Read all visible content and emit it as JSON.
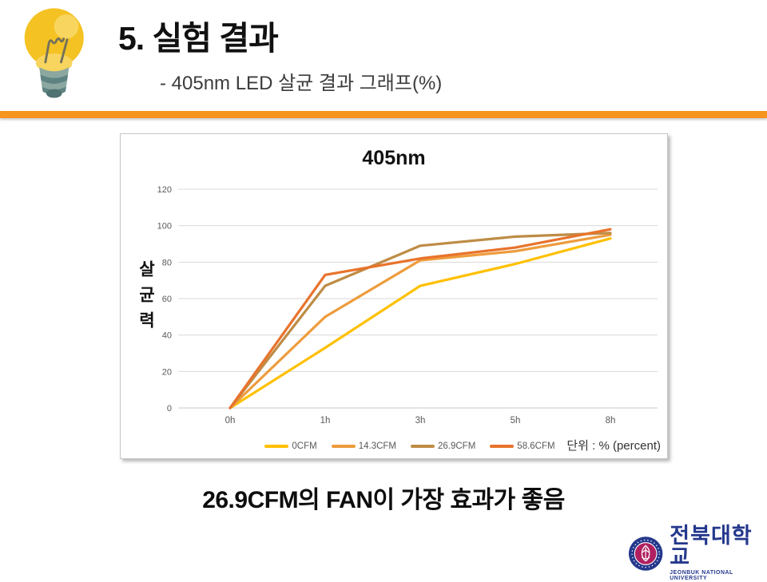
{
  "colors": {
    "accent_orange": "#F5941F",
    "logo_navy": "#24388C",
    "logo_crimson": "#B01F5F",
    "grid_line": "#D9D9D9",
    "axis_text": "#595959"
  },
  "header": {
    "title": "5. 실험 결과",
    "subtitle": "- 405nm LED 살균 결과 그래프(%)"
  },
  "chart_data": {
    "type": "line",
    "title": "405nm",
    "categories": [
      "0h",
      "1h",
      "3h",
      "5h",
      "8h"
    ],
    "series": [
      {
        "name": "0CFM",
        "color": "#FFC000",
        "values": [
          0,
          33,
          67,
          79,
          93
        ]
      },
      {
        "name": "14.3CFM",
        "color": "#EE9C3D",
        "values": [
          0,
          50,
          81,
          86,
          95
        ]
      },
      {
        "name": "26.9CFM",
        "color": "#BE8C45",
        "values": [
          0,
          67,
          89,
          94,
          96
        ]
      },
      {
        "name": "58.6CFM",
        "color": "#E8732C",
        "values": [
          0,
          73,
          82,
          88,
          98
        ]
      }
    ],
    "xlabel": "",
    "ylabel": "살균력",
    "ylim": [
      0,
      120
    ],
    "yticks": [
      0,
      20,
      40,
      60,
      80,
      100,
      120
    ],
    "grid": true,
    "legend_position": "bottom",
    "unit_note": "단위 : % (percent)"
  },
  "conclusion": "26.9CFM의 FAN이 가장 효과가 좋음",
  "logo": {
    "korean_name": "전북대학교",
    "english_name": "JEONBUK NATIONAL UNIVERSITY"
  }
}
